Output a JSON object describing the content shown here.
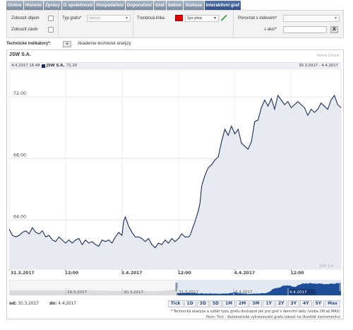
{
  "tabs": [
    {
      "label": "Online",
      "active": false
    },
    {
      "label": "Historie",
      "active": false
    },
    {
      "label": "Zprávy",
      "active": false
    },
    {
      "label": "O společnosti",
      "active": false
    },
    {
      "label": "Hospodaření",
      "active": false
    },
    {
      "label": "Doporučení",
      "active": false
    },
    {
      "label": "Graf",
      "active": false
    },
    {
      "label": "Sektor",
      "active": false
    },
    {
      "label": "Diskuse",
      "active": false
    },
    {
      "label": "Interaktivní graf",
      "active": true
    }
  ],
  "controls": {
    "show_volume": "Zobrazit objem",
    "show_close": "Zobrazit závěr",
    "chart_type_label": "Typ grafu*",
    "chart_type_value": "čárový",
    "trend_line_label": "Trendová linka",
    "line_style_value": "1px plná",
    "compare_index_label": "Porovnat s indexem*",
    "compare_stock_label": "s akcí*",
    "clear_button": "X",
    "trend_color": "#e00000"
  },
  "tech": {
    "label": "Technické indikátory*:",
    "add_button": "+",
    "academy_link": "Akademie technické analýzy"
  },
  "chart_header": {
    "stock": "JSW S.A.",
    "source": "Patria Online",
    "info_left_datetime": "4.4.2017 16:48",
    "info_left_series": "JSW S.A.",
    "info_left_value": "71.20",
    "info_right_range": "30.3.2017 - 4.4.2017",
    "watermark": "JSW S.A."
  },
  "chart_data": {
    "type": "area",
    "title": "JSW S.A.",
    "series": [
      {
        "name": "JSW S.A.",
        "color": "#1a2e59",
        "fill": "#e7ebf1"
      }
    ],
    "y_ticks": [
      "72.00",
      "68.00",
      "64.00"
    ],
    "y_tick_values": [
      72,
      68,
      64
    ],
    "ylim": [
      60.8,
      73.8
    ],
    "x_ticks": [
      "31.3.2017",
      "12:00",
      "3.4.2017",
      "12:00",
      "4.4.2017",
      "12:00"
    ],
    "x_tick_values": [
      0.0,
      0.17,
      0.34,
      0.51,
      0.68,
      0.85
    ],
    "points": [
      [
        0.0,
        63.4
      ],
      [
        0.01,
        63.0
      ],
      [
        0.02,
        62.9
      ],
      [
        0.03,
        63.0
      ],
      [
        0.04,
        63.2
      ],
      [
        0.05,
        63.3
      ],
      [
        0.06,
        63.1
      ],
      [
        0.07,
        63.5
      ],
      [
        0.08,
        63.2
      ],
      [
        0.09,
        63.1
      ],
      [
        0.1,
        63.3
      ],
      [
        0.11,
        62.9
      ],
      [
        0.12,
        63.0
      ],
      [
        0.13,
        62.7
      ],
      [
        0.14,
        62.6
      ],
      [
        0.15,
        62.9
      ],
      [
        0.16,
        62.7
      ],
      [
        0.17,
        62.5
      ],
      [
        0.18,
        62.7
      ],
      [
        0.19,
        62.5
      ],
      [
        0.2,
        62.7
      ],
      [
        0.21,
        62.8
      ],
      [
        0.22,
        62.4
      ],
      [
        0.23,
        62.7
      ],
      [
        0.24,
        62.5
      ],
      [
        0.25,
        62.6
      ],
      [
        0.26,
        62.4
      ],
      [
        0.27,
        62.3
      ],
      [
        0.28,
        62.7
      ],
      [
        0.29,
        62.6
      ],
      [
        0.3,
        62.7
      ],
      [
        0.31,
        62.5
      ],
      [
        0.32,
        62.9
      ],
      [
        0.33,
        63.2
      ],
      [
        0.34,
        63.0
      ],
      [
        0.345,
        63.9
      ],
      [
        0.35,
        64.2
      ],
      [
        0.36,
        63.6
      ],
      [
        0.37,
        63.2
      ],
      [
        0.38,
        62.9
      ],
      [
        0.39,
        62.9
      ],
      [
        0.4,
        62.8
      ],
      [
        0.41,
        62.6
      ],
      [
        0.42,
        62.8
      ],
      [
        0.43,
        62.4
      ],
      [
        0.44,
        62.2
      ],
      [
        0.45,
        62.5
      ],
      [
        0.46,
        62.4
      ],
      [
        0.47,
        62.7
      ],
      [
        0.48,
        62.5
      ],
      [
        0.49,
        62.8
      ],
      [
        0.5,
        62.6
      ],
      [
        0.51,
        62.8
      ],
      [
        0.52,
        63.1
      ],
      [
        0.53,
        62.9
      ],
      [
        0.54,
        62.9
      ],
      [
        0.545,
        63.0
      ],
      [
        0.55,
        63.3
      ],
      [
        0.56,
        63.9
      ],
      [
        0.57,
        64.6
      ],
      [
        0.575,
        65.1
      ],
      [
        0.58,
        66.2
      ],
      [
        0.59,
        66.9
      ],
      [
        0.6,
        67.4
      ],
      [
        0.61,
        67.6
      ],
      [
        0.62,
        67.9
      ],
      [
        0.63,
        68.1
      ],
      [
        0.64,
        69.1
      ],
      [
        0.65,
        69.9
      ],
      [
        0.66,
        69.5
      ],
      [
        0.67,
        70.1
      ],
      [
        0.68,
        69.6
      ],
      [
        0.69,
        69.9
      ],
      [
        0.7,
        69.0
      ],
      [
        0.71,
        68.8
      ],
      [
        0.72,
        68.6
      ],
      [
        0.73,
        69.1
      ],
      [
        0.74,
        70.4
      ],
      [
        0.75,
        70.5
      ],
      [
        0.76,
        71.3
      ],
      [
        0.77,
        71.8
      ],
      [
        0.78,
        71.4
      ],
      [
        0.79,
        71.9
      ],
      [
        0.8,
        71.2
      ],
      [
        0.81,
        72.1
      ],
      [
        0.82,
        71.8
      ],
      [
        0.83,
        71.5
      ],
      [
        0.84,
        71.7
      ],
      [
        0.85,
        71.3
      ],
      [
        0.86,
        71.5
      ],
      [
        0.87,
        71.7
      ],
      [
        0.88,
        71.5
      ],
      [
        0.89,
        71.3
      ],
      [
        0.9,
        70.8
      ],
      [
        0.91,
        71.2
      ],
      [
        0.92,
        71.0
      ],
      [
        0.93,
        71.2
      ],
      [
        0.94,
        71.6
      ],
      [
        0.95,
        71.4
      ],
      [
        0.96,
        71.2
      ],
      [
        0.97,
        71.8
      ],
      [
        0.98,
        72.1
      ],
      [
        0.99,
        71.5
      ],
      [
        1.0,
        71.3
      ]
    ]
  },
  "navigator": {
    "labels": [
      "29.3.2017",
      "30.3.2017",
      "31.3.2017",
      "3.4.2017",
      "4.4.2017"
    ]
  },
  "range": {
    "from_label": "od:",
    "from_value": "30.3.2017",
    "to_label": "do:",
    "to_value": "4.4.2017",
    "buttons": [
      "Tick",
      "1D",
      "3D",
      "5D",
      "1M",
      "2M",
      "3M",
      "1Y",
      "2Y",
      "3Y",
      "4Y",
      "5Y",
      "Max"
    ]
  },
  "footnotes": {
    "line1": "Technická analýza a výběr typu grafu dostupné jen pro graf s denními daty (volba 1M až MAX)",
    "line2": "Pozn: Tick - Automatické vykreslování grafu (závisí na likviditě instrumentu)"
  }
}
